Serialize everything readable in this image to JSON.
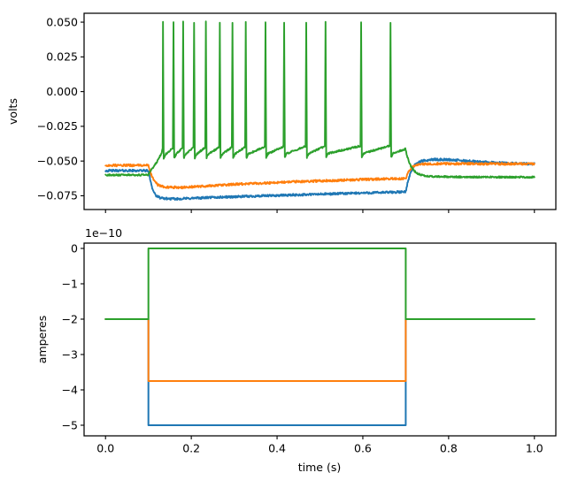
{
  "figure": {
    "background": "#ffffff",
    "description": "Two stacked axes: membrane potential of three cells (top) and injected current steps (bottom) versus time."
  },
  "colors": {
    "blue": "#1f77b4",
    "orange": "#ff7f0e",
    "green": "#2ca02c",
    "spine": "#000000",
    "text": "#000000"
  },
  "chart_data": [
    {
      "type": "line",
      "id": "volts",
      "title": "",
      "xlabel": "",
      "ylabel": "volts",
      "grid": false,
      "legend": null,
      "xlim": [
        -0.05,
        1.05
      ],
      "ylim": [
        -0.0849,
        0.0564
      ],
      "xticks": [
        0.0,
        0.2,
        0.4,
        0.6,
        0.8,
        1.0
      ],
      "xtick_labels": [],
      "yticks": [
        0.05,
        0.025,
        0.0,
        -0.025,
        -0.05,
        -0.075
      ],
      "ytick_labels": [
        "0.050",
        "0.025",
        "0.000",
        "−0.025",
        "−0.050",
        "−0.075"
      ],
      "series": [
        {
          "name": "cell1-voltage",
          "color_key": "blue",
          "noise": 0.0008,
          "anchors": [
            [
              0,
              -0.0569
            ],
            [
              0.1,
              -0.0569
            ],
            [
              0.104,
              -0.063
            ],
            [
              0.11,
              -0.0705
            ],
            [
              0.118,
              -0.0752
            ],
            [
              0.13,
              -0.0768
            ],
            [
              0.16,
              -0.0773
            ],
            [
              0.25,
              -0.0762
            ],
            [
              0.4,
              -0.0748
            ],
            [
              0.55,
              -0.0734
            ],
            [
              0.7,
              -0.0722
            ],
            [
              0.704,
              -0.066
            ],
            [
              0.71,
              -0.0594
            ],
            [
              0.72,
              -0.053
            ],
            [
              0.735,
              -0.0502
            ],
            [
              0.76,
              -0.0489
            ],
            [
              0.8,
              -0.049
            ],
            [
              0.87,
              -0.0505
            ],
            [
              0.95,
              -0.0517
            ],
            [
              1.0,
              -0.0522
            ]
          ]
        },
        {
          "name": "cell2-voltage",
          "color_key": "orange",
          "noise": 0.0008,
          "anchors": [
            [
              0,
              -0.0531
            ],
            [
              0.1,
              -0.0531
            ],
            [
              0.105,
              -0.0585
            ],
            [
              0.112,
              -0.0637
            ],
            [
              0.122,
              -0.0672
            ],
            [
              0.14,
              -0.0688
            ],
            [
              0.18,
              -0.069
            ],
            [
              0.3,
              -0.0668
            ],
            [
              0.45,
              -0.0648
            ],
            [
              0.6,
              -0.0633
            ],
            [
              0.7,
              -0.0626
            ],
            [
              0.705,
              -0.0585
            ],
            [
              0.715,
              -0.054
            ],
            [
              0.725,
              -0.0528
            ],
            [
              0.75,
              -0.052
            ],
            [
              0.8,
              -0.0519
            ],
            [
              0.9,
              -0.052
            ],
            [
              1.0,
              -0.0521
            ]
          ]
        },
        {
          "name": "cell3-voltage",
          "color_key": "green",
          "noise": 0.0006,
          "spike_peak_volts": 0.05,
          "spike_times_s": [
            0.134,
            0.1585,
            0.181,
            0.2065,
            0.234,
            0.2665,
            0.296,
            0.327,
            0.373,
            0.4165,
            0.468,
            0.513,
            0.596,
            0.6645
          ],
          "anchors": [
            [
              0,
              -0.0601
            ],
            [
              0.099,
              -0.06
            ],
            [
              0.106,
              -0.0568
            ],
            [
              0.113,
              -0.0535
            ],
            [
              0.12,
              -0.0504
            ],
            [
              0.126,
              -0.0472
            ],
            [
              0.131,
              -0.0437
            ],
            [
              0.1332,
              -0.041
            ],
            [
              0.134,
              0.05
            ],
            [
              0.1356,
              -0.0478
            ],
            [
              0.14,
              -0.0452
            ],
            [
              0.157,
              -0.0405
            ],
            [
              0.1585,
              0.05
            ],
            [
              0.1601,
              -0.0478
            ],
            [
              0.1645,
              -0.0452
            ],
            [
              0.1795,
              -0.0404
            ],
            [
              0.181,
              0.05
            ],
            [
              0.1826,
              -0.0477
            ],
            [
              0.187,
              -0.0451
            ],
            [
              0.205,
              -0.0403
            ],
            [
              0.2065,
              0.05
            ],
            [
              0.2081,
              -0.0477
            ],
            [
              0.2125,
              -0.045
            ],
            [
              0.2325,
              -0.0402
            ],
            [
              0.234,
              0.05
            ],
            [
              0.2356,
              -0.0477
            ],
            [
              0.24,
              -0.045
            ],
            [
              0.265,
              -0.0401
            ],
            [
              0.2665,
              0.05
            ],
            [
              0.2681,
              -0.0476
            ],
            [
              0.2725,
              -0.0449
            ],
            [
              0.2945,
              -0.04
            ],
            [
              0.296,
              0.05
            ],
            [
              0.2976,
              -0.0476
            ],
            [
              0.302,
              -0.0448
            ],
            [
              0.3255,
              -0.0399
            ],
            [
              0.327,
              0.05
            ],
            [
              0.3286,
              -0.0476
            ],
            [
              0.333,
              -0.0448
            ],
            [
              0.3715,
              -0.0397
            ],
            [
              0.373,
              0.05
            ],
            [
              0.3746,
              -0.0475
            ],
            [
              0.379,
              -0.0447
            ],
            [
              0.415,
              -0.0396
            ],
            [
              0.4165,
              0.05
            ],
            [
              0.4181,
              -0.0475
            ],
            [
              0.4225,
              -0.0446
            ],
            [
              0.4665,
              -0.0394
            ],
            [
              0.468,
              0.05
            ],
            [
              0.4696,
              -0.0474
            ],
            [
              0.474,
              -0.0445
            ],
            [
              0.5115,
              -0.0393
            ],
            [
              0.513,
              0.05
            ],
            [
              0.5146,
              -0.0474
            ],
            [
              0.519,
              -0.0445
            ],
            [
              0.5945,
              -0.0391
            ],
            [
              0.596,
              0.05
            ],
            [
              0.5976,
              -0.0473
            ],
            [
              0.602,
              -0.0444
            ],
            [
              0.663,
              -0.039
            ],
            [
              0.6645,
              0.05
            ],
            [
              0.6661,
              -0.0472
            ],
            [
              0.671,
              -0.0443
            ],
            [
              0.699,
              -0.0413
            ],
            [
              0.703,
              -0.046
            ],
            [
              0.707,
              -0.0503
            ],
            [
              0.712,
              -0.0538
            ],
            [
              0.718,
              -0.0566
            ],
            [
              0.726,
              -0.0587
            ],
            [
              0.736,
              -0.06
            ],
            [
              0.75,
              -0.0608
            ],
            [
              0.77,
              -0.0612
            ],
            [
              0.85,
              -0.0615
            ],
            [
              1.0,
              -0.0616
            ]
          ]
        }
      ]
    },
    {
      "type": "line",
      "id": "amperes",
      "title": "",
      "xlabel": "time (s)",
      "ylabel": "amperes",
      "offset_text": "1e−10",
      "unit_scale": 1e-10,
      "grid": false,
      "legend": null,
      "xlim": [
        -0.05,
        1.05
      ],
      "ylim": [
        -5.3,
        0.15
      ],
      "xticks": [
        0.0,
        0.2,
        0.4,
        0.6,
        0.8,
        1.0
      ],
      "xtick_labels": [
        "0.0",
        "0.2",
        "0.4",
        "0.6",
        "0.8",
        "1.0"
      ],
      "yticks": [
        0,
        -1,
        -2,
        -3,
        -4,
        -5
      ],
      "ytick_labels": [
        "0",
        "−1",
        "−2",
        "−3",
        "−4",
        "−5"
      ],
      "series": [
        {
          "name": "cell1-current",
          "color_key": "blue",
          "baseline": -2,
          "step_value": -5,
          "step_start": 0.1,
          "step_end": 0.7
        },
        {
          "name": "cell2-current",
          "color_key": "orange",
          "baseline": -2,
          "step_value": -3.75,
          "step_start": 0.1,
          "step_end": 0.7
        },
        {
          "name": "cell3-current",
          "color_key": "green",
          "baseline": -2,
          "step_value": 0,
          "step_start": 0.1,
          "step_end": 0.7
        }
      ]
    }
  ]
}
